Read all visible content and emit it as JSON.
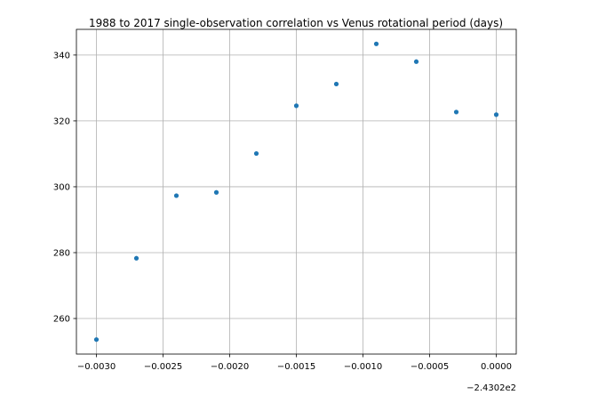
{
  "chart_data": {
    "type": "scatter",
    "title": "1988 to 2017 single-observation correlation vs Venus rotational period (days)",
    "xlabel": "",
    "ylabel": "",
    "x_offset_label": "−2.4302e2",
    "xlim": [
      -0.00315,
      0.00015
    ],
    "ylim": [
      249.2,
      347.8
    ],
    "x_ticks": [
      -0.003,
      -0.0025,
      -0.002,
      -0.0015,
      -0.001,
      -0.0005,
      0.0
    ],
    "x_tick_labels": [
      "−0.0030",
      "−0.0025",
      "−0.0020",
      "−0.0015",
      "−0.0010",
      "−0.0005",
      "0.0000"
    ],
    "y_ticks": [
      260,
      280,
      300,
      320,
      340
    ],
    "y_tick_labels": [
      "260",
      "280",
      "300",
      "320",
      "340"
    ],
    "grid": true,
    "marker_color": "#1f77b4",
    "series": [
      {
        "x": [
          -0.003,
          -0.0027,
          -0.0024,
          -0.0021,
          -0.0018,
          -0.0015,
          -0.0012,
          -0.0009,
          -0.0006,
          -0.0003,
          0.0
        ],
        "y": [
          253.6,
          278.3,
          297.3,
          298.3,
          310.1,
          324.6,
          331.2,
          343.4,
          338.0,
          322.7,
          321.9
        ]
      }
    ]
  }
}
